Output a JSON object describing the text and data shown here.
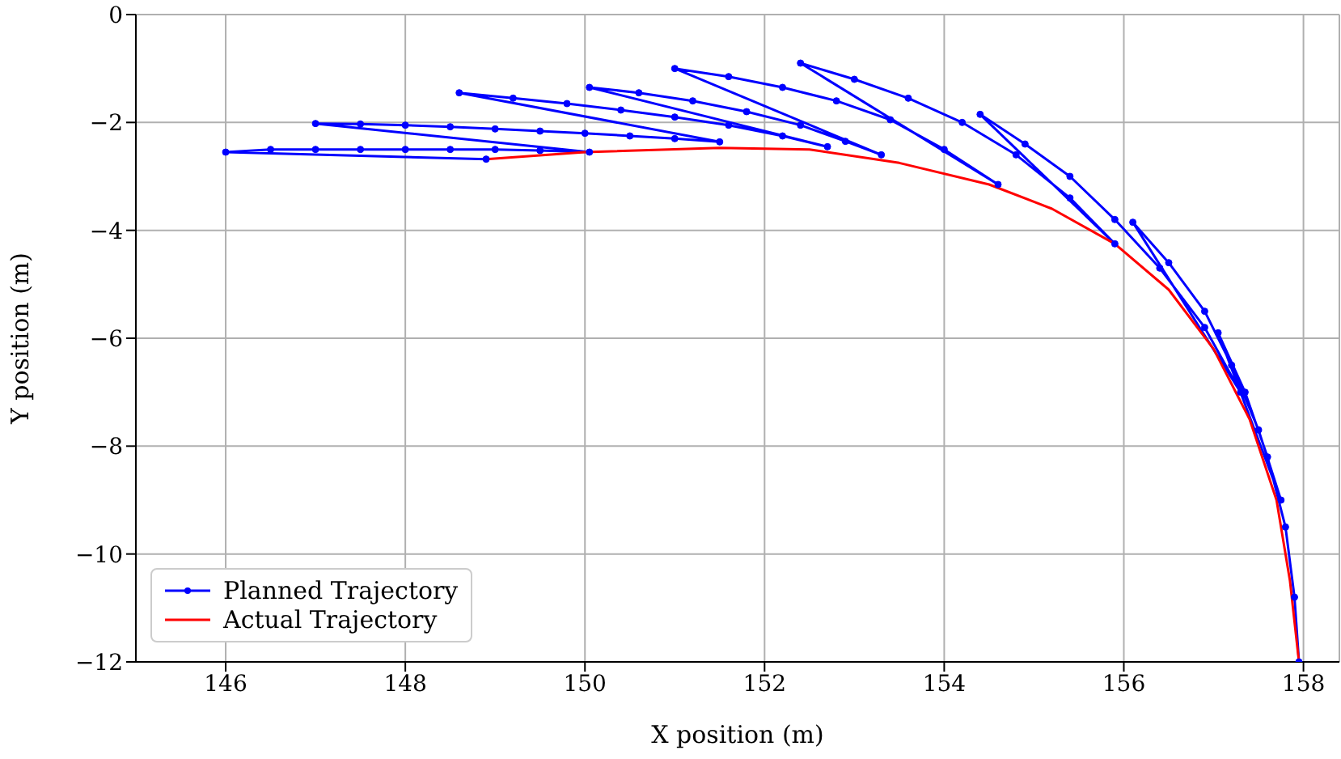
{
  "chart_data": {
    "type": "line",
    "xlabel": "X position (m)",
    "ylabel": "Y position (m)",
    "xlim": [
      145,
      158.4
    ],
    "xticks": [
      146,
      148,
      150,
      152,
      154,
      156,
      158
    ],
    "ylim": [
      -12,
      0
    ],
    "yticks": [
      -12,
      -10,
      -8,
      -6,
      -4,
      -2,
      0
    ],
    "grid": true,
    "legend": "bottom left",
    "series": [
      {
        "name": "Planned Trajectory",
        "color": "#0000ff",
        "marker": "circle",
        "x": [
          148.9,
          146,
          146.5,
          147,
          147.5,
          148,
          148.5,
          149,
          149.5,
          150.05,
          147,
          147.5,
          148,
          148.5,
          149,
          149.5,
          150,
          150.5,
          151,
          151.5,
          148.6,
          149.2,
          149.8,
          150.4,
          151,
          151.6,
          152.2,
          152.7,
          150.05,
          150.6,
          151.2,
          151.8,
          152.4,
          152.9,
          153.3,
          151,
          151.6,
          152.2,
          152.8,
          153.4,
          154,
          154.6,
          152.4,
          153,
          153.6,
          154.2,
          154.8,
          155.4,
          155.9,
          154.4,
          154.9,
          155.4,
          155.9,
          156.4,
          156.9,
          157.3,
          156.1,
          156.5,
          156.9,
          157.2,
          157.5,
          157.75,
          157.05,
          157.35,
          157.6,
          157.8,
          157.9,
          157.95
        ],
        "values": [
          -2.68,
          -2.55,
          -2.5,
          -2.5,
          -2.5,
          -2.5,
          -2.5,
          -2.5,
          -2.52,
          -2.55,
          -2.02,
          -2.03,
          -2.05,
          -2.08,
          -2.12,
          -2.16,
          -2.2,
          -2.25,
          -2.3,
          -2.36,
          -1.45,
          -1.55,
          -1.65,
          -1.77,
          -1.9,
          -2.05,
          -2.25,
          -2.45,
          -1.35,
          -1.45,
          -1.6,
          -1.8,
          -2.05,
          -2.35,
          -2.6,
          -1.0,
          -1.15,
          -1.35,
          -1.6,
          -1.95,
          -2.5,
          -3.15,
          -0.9,
          -1.2,
          -1.55,
          -2.0,
          -2.6,
          -3.4,
          -4.25,
          -1.85,
          -2.4,
          -3.0,
          -3.8,
          -4.7,
          -5.8,
          -7.0,
          -3.85,
          -4.6,
          -5.5,
          -6.5,
          -7.7,
          -9.0,
          -5.9,
          -7.0,
          -8.2,
          -9.5,
          -10.8,
          -12
        ]
      },
      {
        "name": "Actual Trajectory",
        "color": "#ff0000",
        "marker": "none",
        "x": [
          148.9,
          150,
          151.5,
          152.5,
          153.5,
          154.5,
          155.2,
          155.9,
          156.5,
          157,
          157.4,
          157.7,
          157.85,
          157.95
        ],
        "values": [
          -2.68,
          -2.55,
          -2.47,
          -2.5,
          -2.75,
          -3.15,
          -3.6,
          -4.25,
          -5.1,
          -6.2,
          -7.5,
          -9,
          -10.5,
          -12
        ]
      }
    ]
  }
}
